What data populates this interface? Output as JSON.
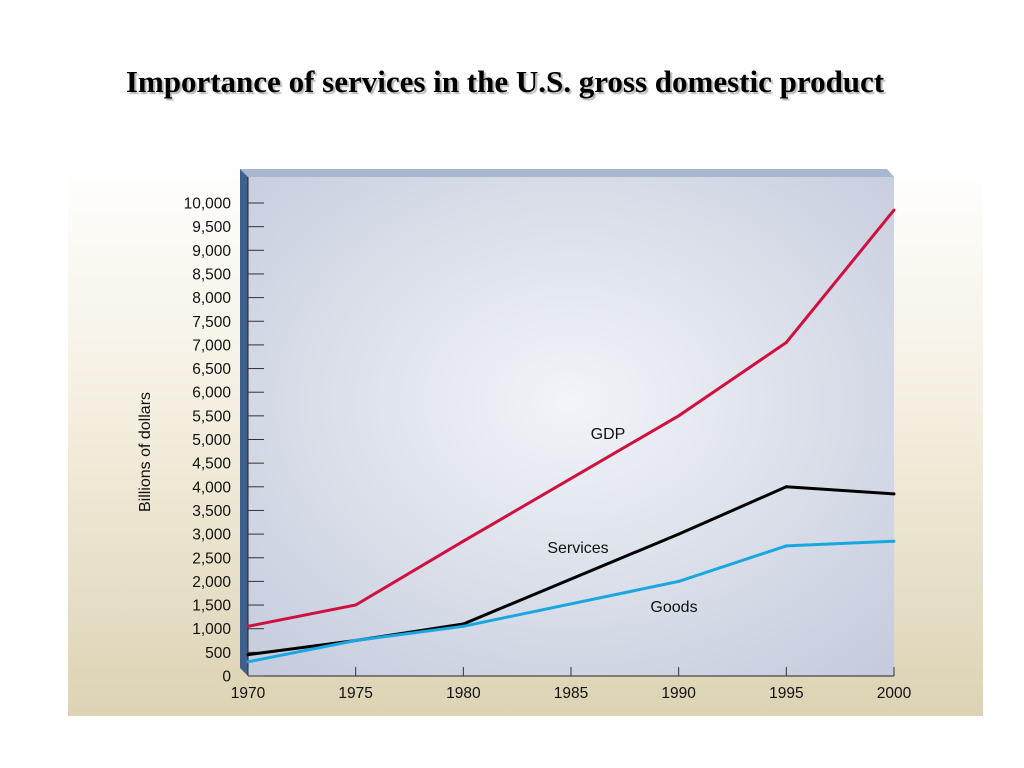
{
  "title": "Importance of services in the U.S. gross domestic product",
  "colors": {
    "plot_fill_center": "#f2f4f8",
    "plot_fill_edge": "#c5ccdd",
    "left_wall": "#3f5f8f",
    "top_wall": "#a9b6cf",
    "gdp": "#cf1140",
    "services": "#000000",
    "goods": "#1aa7e0"
  },
  "chart_data": {
    "type": "line",
    "title": "Importance of services in the U.S. gross domestic product",
    "xlabel": "",
    "ylabel": "Billions of dollars",
    "x": [
      1970,
      1975,
      1980,
      1990,
      1995,
      2000
    ],
    "x_ticks": [
      "1970",
      "1975",
      "1980",
      "1985",
      "1990",
      "1995",
      "2000"
    ],
    "y_ticks": [
      "0",
      "500",
      "1,000",
      "1,500",
      "2,000",
      "2,500",
      "3,000",
      "3,500",
      "4,000",
      "4,500",
      "5,000",
      "5,500",
      "6,000",
      "6,500",
      "7,000",
      "7,500",
      "8,000",
      "8,500",
      "9,000",
      "9,500",
      "10,000"
    ],
    "xlim": [
      1970,
      2000
    ],
    "ylim": [
      0,
      10000
    ],
    "grid": false,
    "series": [
      {
        "name": "GDP",
        "color": "#cf1140",
        "points": [
          [
            1970,
            1050
          ],
          [
            1975,
            1500
          ],
          [
            1980,
            2850
          ],
          [
            1990,
            5500
          ],
          [
            1995,
            7050
          ],
          [
            2000,
            9850
          ]
        ]
      },
      {
        "name": "Services",
        "color": "#000000",
        "points": [
          [
            1970,
            450
          ],
          [
            1975,
            750
          ],
          [
            1980,
            1100
          ],
          [
            1990,
            3000
          ],
          [
            1995,
            4000
          ],
          [
            2000,
            3850
          ]
        ]
      },
      {
        "name": "Goods",
        "color": "#1aa7e0",
        "points": [
          [
            1970,
            300
          ],
          [
            1975,
            750
          ],
          [
            1980,
            1050
          ],
          [
            1990,
            2000
          ],
          [
            1995,
            2750
          ],
          [
            2000,
            2850
          ]
        ]
      }
    ]
  }
}
